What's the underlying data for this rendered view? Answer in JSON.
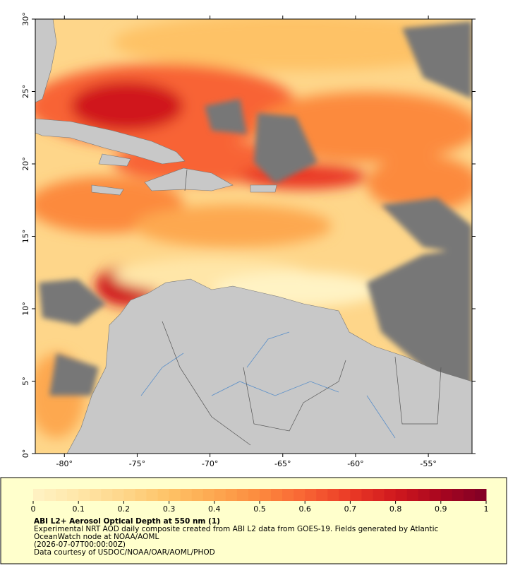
{
  "chart_data": {
    "type": "map",
    "xlim": [
      -82,
      -52
    ],
    "ylim": [
      0,
      30
    ],
    "xticks": [
      {
        "value": -80,
        "label": "-80°"
      },
      {
        "value": -75,
        "label": "-75°"
      },
      {
        "value": -70,
        "label": "-70°"
      },
      {
        "value": -65,
        "label": "-65°"
      },
      {
        "value": -60,
        "label": "-60°"
      },
      {
        "value": -55,
        "label": "-55°"
      }
    ],
    "yticks": [
      {
        "value": 0,
        "label": "0°"
      },
      {
        "value": 5,
        "label": "5°"
      },
      {
        "value": 10,
        "label": "10°"
      },
      {
        "value": 15,
        "label": "15°"
      },
      {
        "value": 20,
        "label": "20°"
      },
      {
        "value": 25,
        "label": "25°"
      },
      {
        "value": 30,
        "label": "30°"
      }
    ],
    "colorbar": {
      "lim": [
        0,
        1
      ],
      "ticks": [
        0,
        0.1,
        0.2,
        0.3,
        0.4,
        0.5,
        0.6,
        0.7,
        0.8,
        0.9,
        1
      ],
      "colors": [
        "#fff3c4",
        "#ffe6a8",
        "#fed68a",
        "#fec266",
        "#fda850",
        "#fc8a3e",
        "#f86434",
        "#ea3a26",
        "#d0181e",
        "#a8061f",
        "#800026"
      ]
    }
  },
  "legend": {
    "title": "ABI L2+ Aerosol Optical Depth at 550 nm (1)",
    "description": "Experimental NRT AOD daily composite created from ABI L2 data from GOES-19. Fields generated by Atlantic OceanWatch node at NOAA/AOML",
    "date": "(2026-07-07T00:00:00Z)",
    "credit": "Data courtesy of USDOC/NOAA/OAR/AOML/PHOD"
  }
}
